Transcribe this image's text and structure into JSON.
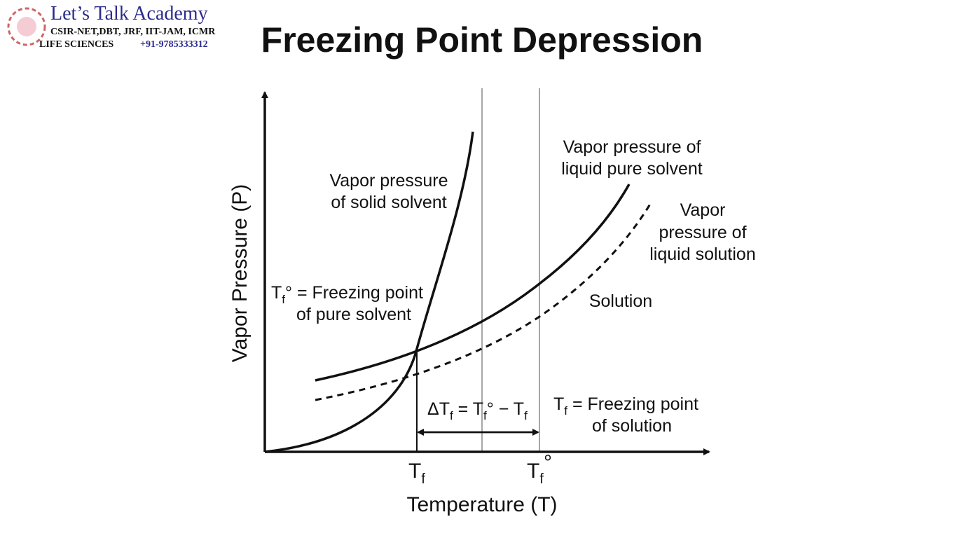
{
  "header": {
    "logo": {
      "name": "Let’s Talk Academy",
      "exams": "CSIR-NET,DBT, JRF, IIT-JAM, ICMR",
      "subject": "LIFE SCIENCES",
      "phone": "+91-9785333312"
    },
    "title": "Freezing Point Depression"
  },
  "diagram": {
    "y_label": "Vapor Pressure (P)",
    "x_label": "Temperature (T)",
    "x_ticks": [
      [
        "T",
        "f"
      ],
      [
        "T",
        "f",
        "°"
      ]
    ],
    "annotations": {
      "solid_vp": [
        "Vapor pressure",
        "of solid solvent"
      ],
      "liquid_vp": [
        "Vapor pressure of",
        "liquid pure solvent"
      ],
      "solution_vp": [
        "Vapor",
        "pressure of",
        "liquid solution"
      ],
      "solution": "Solution",
      "pure_fp": {
        "line1": [
          "T",
          "f",
          "° = Freezing point"
        ],
        "line2": "of pure solvent"
      },
      "solution_fp": {
        "line1": [
          "T",
          "f",
          " = Freezing point"
        ],
        "line2": "of solution"
      },
      "delta": [
        "ΔT",
        "f",
        " = T",
        "f",
        "° − T",
        "f"
      ]
    }
  }
}
